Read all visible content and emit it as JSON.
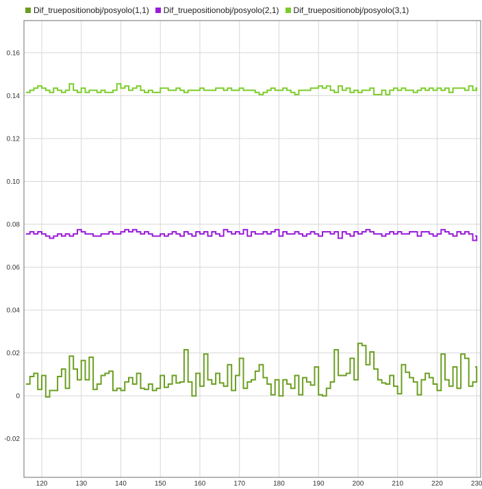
{
  "chart_data": {
    "type": "line",
    "title": "",
    "xlabel": "",
    "ylabel": "",
    "xlim": [
      115.5,
      231
    ],
    "ylim": [
      -0.038,
      0.175
    ],
    "grid": true,
    "legend_position": "top-left",
    "x_ticks": [
      120,
      130,
      140,
      150,
      160,
      170,
      180,
      190,
      200,
      210,
      220,
      230
    ],
    "x_tick_labels": [
      "120",
      "130",
      "140",
      "150",
      "160",
      "170",
      "180",
      "190",
      "200",
      "210",
      "220",
      "230"
    ],
    "y_ticks": [
      -0.02,
      0,
      0.02,
      0.04,
      0.06,
      0.08,
      0.1,
      0.12,
      0.14,
      0.16
    ],
    "y_tick_labels": [
      "-0.02",
      "0",
      "0.02",
      "0.04",
      "0.06",
      "0.08",
      "0.10",
      "0.12",
      "0.14",
      "0.16"
    ],
    "x": [
      116,
      117,
      118,
      119,
      120,
      121,
      122,
      123,
      124,
      125,
      126,
      127,
      128,
      129,
      130,
      131,
      132,
      133,
      134,
      135,
      136,
      137,
      138,
      139,
      140,
      141,
      142,
      143,
      144,
      145,
      146,
      147,
      148,
      149,
      150,
      151,
      152,
      153,
      154,
      155,
      156,
      157,
      158,
      159,
      160,
      161,
      162,
      163,
      164,
      165,
      166,
      167,
      168,
      169,
      170,
      171,
      172,
      173,
      174,
      175,
      176,
      177,
      178,
      179,
      180,
      181,
      182,
      183,
      184,
      185,
      186,
      187,
      188,
      189,
      190,
      191,
      192,
      193,
      194,
      195,
      196,
      197,
      198,
      199,
      200,
      201,
      202,
      203,
      204,
      205,
      206,
      207,
      208,
      209,
      210,
      211,
      212,
      213,
      214,
      215,
      216,
      217,
      218,
      219,
      220,
      221,
      222,
      223,
      224,
      225,
      226,
      227,
      228,
      229,
      230
    ],
    "series": [
      {
        "name": "Dif_truepositionobj/posyolo(1,1)",
        "color": "#6a9e1f",
        "values": [
          0.0055,
          0.009,
          0.0105,
          0.003,
          0.0095,
          -0.0005,
          0.0025,
          0.0025,
          0.009,
          0.0125,
          0.0035,
          0.0185,
          0.0125,
          0.0075,
          0.0165,
          0.0075,
          0.018,
          0.003,
          0.0055,
          0.0095,
          0.0105,
          0.0115,
          0.0025,
          0.0035,
          0.0025,
          0.0065,
          0.0085,
          0.0055,
          0.0105,
          0.0035,
          0.003,
          0.0055,
          0.0025,
          0.0035,
          0.0095,
          0.004,
          0.0055,
          0.0095,
          0.006,
          0.0065,
          0.0215,
          0.0065,
          0.0,
          0.0105,
          0.0045,
          0.0195,
          0.0075,
          0.0055,
          0.0105,
          0.006,
          0.0045,
          0.0145,
          0.0025,
          0.0095,
          0.0175,
          0.0035,
          0.0065,
          0.0075,
          0.0115,
          0.0145,
          0.0085,
          0.0055,
          0.0005,
          0.0075,
          0.0,
          0.0075,
          0.0055,
          0.0035,
          0.0095,
          0.0005,
          0.0085,
          0.0065,
          0.005,
          0.0135,
          0.0005,
          0.0,
          0.0035,
          0.0065,
          0.0215,
          0.0095,
          0.0095,
          0.0105,
          0.0175,
          0.0075,
          0.0245,
          0.0235,
          0.0145,
          0.0205,
          0.0125,
          0.0075,
          0.006,
          0.0055,
          0.0095,
          0.0045,
          0.001,
          0.0145,
          0.011,
          0.0085,
          0.0065,
          0.0005,
          0.0075,
          0.0105,
          0.0085,
          0.0055,
          0.0025,
          0.0195,
          0.0075,
          0.0045,
          0.0135,
          0.0035,
          0.0195,
          0.0175,
          0.0045,
          0.0065,
          0.0135
        ]
      },
      {
        "name": "Dif_truepositionobj/posyolo(2,1)",
        "color": "#9a1bd8",
        "values": [
          0.0755,
          0.0765,
          0.0755,
          0.0765,
          0.0755,
          0.0745,
          0.0735,
          0.0745,
          0.0755,
          0.0745,
          0.0755,
          0.0745,
          0.0755,
          0.0775,
          0.0765,
          0.0755,
          0.0755,
          0.0745,
          0.0745,
          0.0755,
          0.0755,
          0.0765,
          0.0755,
          0.0755,
          0.0765,
          0.0775,
          0.0765,
          0.0775,
          0.0765,
          0.0755,
          0.0765,
          0.0755,
          0.0745,
          0.0745,
          0.0755,
          0.0745,
          0.0755,
          0.0765,
          0.0755,
          0.0745,
          0.0765,
          0.0755,
          0.0745,
          0.0765,
          0.0755,
          0.0765,
          0.0745,
          0.0765,
          0.0755,
          0.0745,
          0.0775,
          0.0765,
          0.0755,
          0.0765,
          0.0755,
          0.0775,
          0.0745,
          0.0765,
          0.0755,
          0.0755,
          0.0765,
          0.0755,
          0.0765,
          0.0775,
          0.0745,
          0.0765,
          0.0755,
          0.0755,
          0.0765,
          0.0755,
          0.0745,
          0.0755,
          0.0765,
          0.0755,
          0.0745,
          0.0765,
          0.0765,
          0.0755,
          0.0765,
          0.0735,
          0.0765,
          0.0755,
          0.0745,
          0.0765,
          0.0755,
          0.0765,
          0.0775,
          0.0765,
          0.0755,
          0.0755,
          0.0745,
          0.0755,
          0.0765,
          0.0755,
          0.0765,
          0.0755,
          0.0755,
          0.0765,
          0.0765,
          0.0745,
          0.0765,
          0.0765,
          0.0755,
          0.0745,
          0.0755,
          0.0775,
          0.0765,
          0.0755,
          0.0745,
          0.0765,
          0.0755,
          0.0765,
          0.0755,
          0.0725,
          0.0745
        ]
      },
      {
        "name": "Dif_truepositionobj/posyolo(3,1)",
        "color": "#7bcc29",
        "values": [
          0.1415,
          0.1425,
          0.1435,
          0.1445,
          0.1435,
          0.1425,
          0.1415,
          0.1435,
          0.1425,
          0.1415,
          0.1425,
          0.1455,
          0.1425,
          0.1415,
          0.1435,
          0.1415,
          0.1425,
          0.1425,
          0.1415,
          0.1425,
          0.1415,
          0.1415,
          0.1425,
          0.1455,
          0.1435,
          0.1445,
          0.1425,
          0.1435,
          0.1445,
          0.1425,
          0.1415,
          0.1425,
          0.1415,
          0.1415,
          0.1435,
          0.1435,
          0.1425,
          0.1425,
          0.1435,
          0.1425,
          0.1415,
          0.1425,
          0.1425,
          0.1425,
          0.1435,
          0.1425,
          0.1425,
          0.1425,
          0.1435,
          0.1435,
          0.1425,
          0.1435,
          0.1425,
          0.1425,
          0.1435,
          0.1425,
          0.1425,
          0.1425,
          0.1415,
          0.1405,
          0.1415,
          0.1425,
          0.1435,
          0.1425,
          0.1425,
          0.1435,
          0.1425,
          0.1415,
          0.1405,
          0.1425,
          0.1425,
          0.1425,
          0.1435,
          0.1435,
          0.1445,
          0.1435,
          0.1445,
          0.1425,
          0.1415,
          0.1445,
          0.1425,
          0.1435,
          0.1415,
          0.1425,
          0.1415,
          0.1425,
          0.1425,
          0.1435,
          0.1405,
          0.1405,
          0.1425,
          0.1405,
          0.1425,
          0.1435,
          0.1425,
          0.1435,
          0.1425,
          0.1425,
          0.1415,
          0.1425,
          0.1435,
          0.1425,
          0.1435,
          0.1425,
          0.1435,
          0.1425,
          0.1435,
          0.1415,
          0.1435,
          0.1435,
          0.1435,
          0.1425,
          0.1445,
          0.1425,
          0.1435
        ]
      }
    ]
  },
  "style": {
    "grid_color": "#d7d7d7",
    "axes_border_color": "#6e6e6e"
  }
}
